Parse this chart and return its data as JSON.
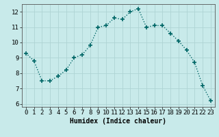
{
  "x": [
    0,
    1,
    2,
    3,
    4,
    5,
    6,
    7,
    8,
    9,
    10,
    11,
    12,
    13,
    14,
    15,
    16,
    17,
    18,
    19,
    20,
    21,
    22,
    23
  ],
  "y": [
    9.3,
    8.8,
    7.5,
    7.5,
    7.8,
    8.2,
    9.0,
    9.2,
    9.8,
    11.0,
    11.1,
    11.6,
    11.5,
    12.0,
    12.2,
    11.0,
    11.1,
    11.1,
    10.6,
    10.1,
    9.5,
    8.7,
    7.2,
    6.2
  ],
  "line_color": "#006666",
  "marker": "+",
  "marker_size": 4,
  "bg_color": "#c8eaea",
  "grid_color": "#aed4d4",
  "xlabel": "Humidex (Indice chaleur)",
  "ylim": [
    5.8,
    12.5
  ],
  "xlim": [
    -0.5,
    23.5
  ],
  "yticks": [
    6,
    7,
    8,
    9,
    10,
    11,
    12
  ],
  "xticks": [
    0,
    1,
    2,
    3,
    4,
    5,
    6,
    7,
    8,
    9,
    10,
    11,
    12,
    13,
    14,
    15,
    16,
    17,
    18,
    19,
    20,
    21,
    22,
    23
  ],
  "label_fontsize": 7,
  "tick_fontsize": 6.5
}
